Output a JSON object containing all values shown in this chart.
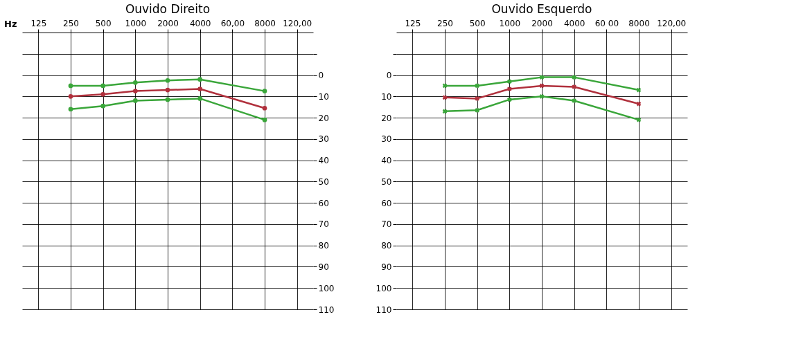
{
  "chart_data": [
    {
      "type": "line",
      "title": "Ouvido Direito",
      "xlabel": "Hz",
      "categories": [
        "125",
        "250",
        "500",
        "1000",
        "2000",
        "4000",
        "60,00",
        "8000",
        "120,00"
      ],
      "ylim": [
        110,
        -20
      ],
      "yticks": [
        {
          "value": -10,
          "label": null
        },
        0,
        10,
        20,
        30,
        40,
        50,
        60,
        70,
        80,
        90,
        100,
        110
      ],
      "grid": true,
      "marker": "circle",
      "line_style": "solid",
      "series": [
        {
          "color": "#3aa63a",
          "values": [
            null,
            5,
            5,
            3.5,
            2.5,
            2,
            null,
            7.5,
            null
          ]
        },
        {
          "color": "#b0303c",
          "values": [
            null,
            10,
            9,
            7.5,
            7,
            6.5,
            null,
            15.5,
            null
          ]
        },
        {
          "color": "#3aa63a",
          "values": [
            null,
            16,
            14.5,
            12,
            11.5,
            11,
            null,
            21,
            null
          ]
        }
      ]
    },
    {
      "type": "line",
      "title": "Ouvido Esquerdo",
      "categories": [
        "125",
        "250",
        "500",
        "1000",
        "2000",
        "4000",
        "60 00",
        "8000",
        "120,00"
      ],
      "ylim": [
        110,
        -20
      ],
      "yticks": [
        {
          "value": -10,
          "label": null
        },
        0,
        10,
        20,
        30,
        40,
        50,
        60,
        70,
        80,
        90,
        100,
        110
      ],
      "grid": true,
      "marker": "cross",
      "line_style": "solid",
      "series": [
        {
          "color": "#3aa63a",
          "values": [
            null,
            5,
            5,
            3,
            1,
            1,
            null,
            7,
            null
          ]
        },
        {
          "color": "#b0303c",
          "values": [
            null,
            10.5,
            11,
            6.5,
            5,
            5.5,
            null,
            13.5,
            null
          ]
        },
        {
          "color": "#3aa63a",
          "values": [
            null,
            17,
            16.5,
            11.5,
            10,
            12,
            null,
            21,
            null
          ]
        }
      ]
    }
  ]
}
